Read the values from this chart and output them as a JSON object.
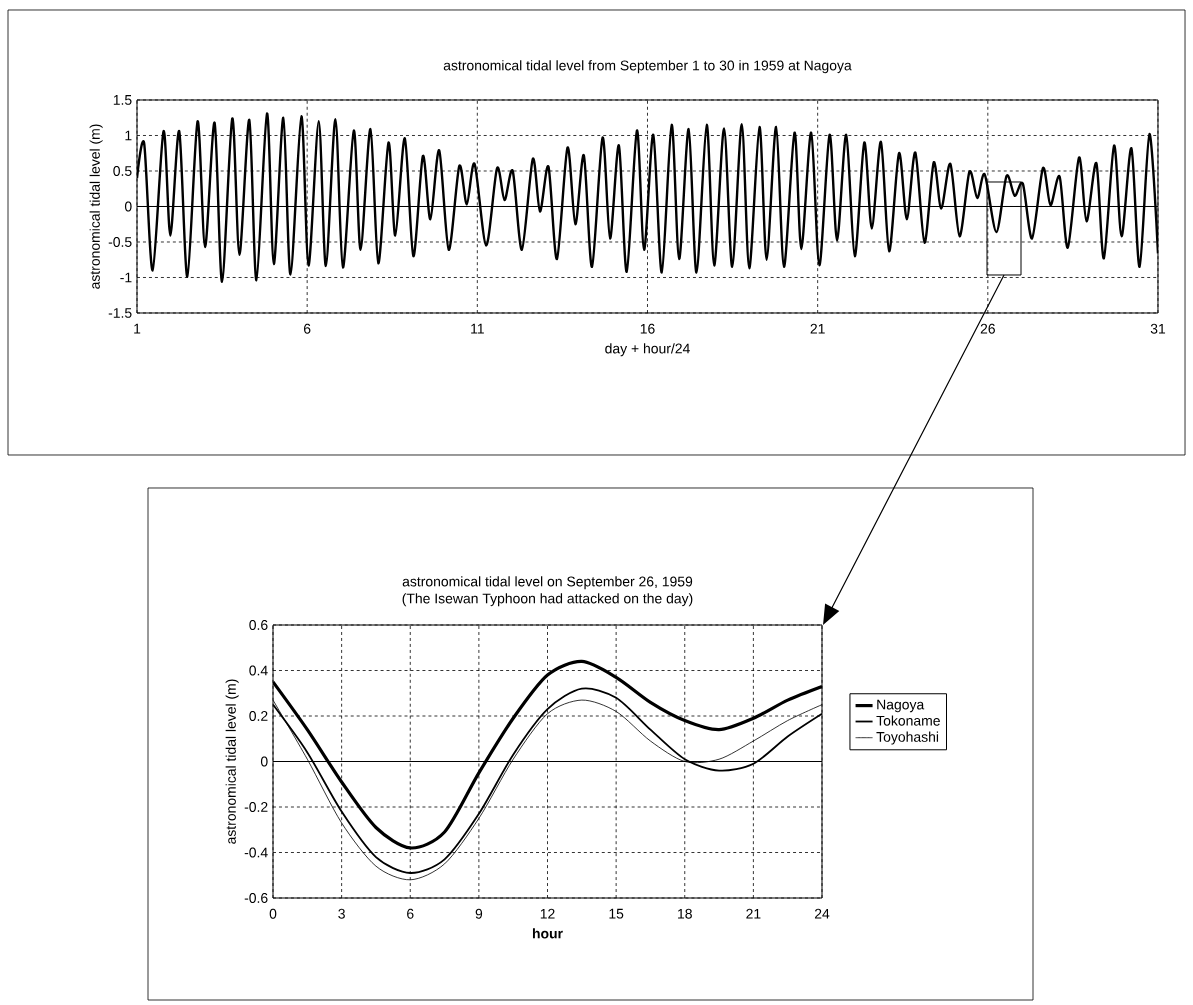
{
  "chart_data": [
    {
      "type": "line",
      "title": "astronomical tidal level from September 1 to 30 in 1959 at Nagoya",
      "xlabel": "day + hour/24",
      "ylabel": "astronomical tidal level (m)",
      "x": [
        1.0,
        1.21,
        1.46,
        1.78,
        1.98,
        2.24,
        2.48,
        2.78,
        3.0,
        3.28,
        3.5,
        3.8,
        4.01,
        4.3,
        4.51,
        4.82,
        5.02,
        5.3,
        5.51,
        5.83,
        6.04,
        6.34,
        6.55,
        6.83,
        7.05,
        7.37,
        7.57,
        7.86,
        8.09,
        8.39,
        8.59,
        8.87,
        9.12,
        9.4,
        9.62,
        9.88,
        10.16,
        10.47,
        10.69,
        10.92,
        11.26,
        11.58,
        11.8,
        12.04,
        12.31,
        12.63,
        12.84,
        13.09,
        13.34,
        13.65,
        13.88,
        14.13,
        14.37,
        14.68,
        14.9,
        15.16,
        15.39,
        15.69,
        15.9,
        16.17,
        16.42,
        16.71,
        16.93,
        17.21,
        17.44,
        17.74,
        17.96,
        18.25,
        18.49,
        18.77,
        18.99,
        19.29,
        19.5,
        19.78,
        20.01,
        20.32,
        20.52,
        20.81,
        21.05,
        21.35,
        21.57,
        21.84,
        22.09,
        22.37,
        22.59,
        22.86,
        23.1,
        23.39,
        23.62,
        23.87,
        24.14,
        24.41,
        24.63,
        24.9,
        25.17,
        25.46,
        25.69,
        25.91,
        26.25,
        26.55,
        26.79,
        27.03,
        27.3,
        27.62,
        27.84,
        28.11,
        28.35,
        28.68,
        28.9,
        29.19,
        29.41,
        29.71,
        29.93,
        30.22,
        30.46,
        30.75,
        31.0
      ],
      "series": [
        {
          "color": "#000000",
          "values": [
            0.4,
            0.89,
            -0.9,
            1.06,
            -0.41,
            1.06,
            -0.99,
            1.2,
            -0.57,
            1.18,
            -1.06,
            1.24,
            -0.68,
            1.22,
            -1.04,
            1.31,
            -0.81,
            1.25,
            -0.96,
            1.27,
            -0.83,
            1.2,
            -0.84,
            1.23,
            -0.86,
            1.07,
            -0.61,
            1.09,
            -0.8,
            0.9,
            -0.41,
            0.96,
            -0.7,
            0.71,
            -0.18,
            0.79,
            -0.61,
            0.57,
            0.03,
            0.6,
            -0.55,
            0.54,
            0.09,
            0.5,
            -0.61,
            0.67,
            -0.07,
            0.56,
            -0.74,
            0.83,
            -0.25,
            0.72,
            -0.85,
            0.97,
            -0.45,
            0.86,
            -0.92,
            1.07,
            -0.61,
            1.01,
            -0.93,
            1.15,
            -0.74,
            1.09,
            -0.93,
            1.15,
            -0.83,
            1.1,
            -0.85,
            1.16,
            -0.87,
            1.12,
            -0.75,
            1.12,
            -0.85,
            1.04,
            -0.6,
            1.04,
            -0.83,
            1.01,
            -0.48,
            1.01,
            -0.7,
            0.9,
            -0.31,
            0.91,
            -0.63,
            0.75,
            -0.18,
            0.76,
            -0.51,
            0.62,
            -0.03,
            0.6,
            -0.42,
            0.49,
            0.12,
            0.45,
            -0.36,
            0.43,
            0.15,
            0.32,
            -0.45,
            0.54,
            0.02,
            0.42,
            -0.58,
            0.69,
            -0.21,
            0.61,
            -0.73,
            0.86,
            -0.42,
            0.82,
            -0.85,
            1.02,
            -0.66
          ]
        }
      ],
      "xlim": [
        1,
        31
      ],
      "ylim": [
        -1.5,
        1.5
      ],
      "xticks": [
        1,
        6,
        11,
        16,
        21,
        26,
        31
      ],
      "yticks": [
        -1.5,
        -1,
        -0.5,
        0,
        0.5,
        1,
        1.5
      ],
      "grid": true,
      "ref_lines": [
        {
          "axis": "y",
          "value": 0,
          "line_style": "solid"
        }
      ]
    },
    {
      "type": "line",
      "title": "astronomical tidal level on September 26, 1959",
      "subtitle": "(The Isewan Typhoon had attacked on the day)",
      "xlabel": "hour",
      "ylabel": "astronomical tidal level (m)",
      "x": [
        0,
        1.5,
        3,
        4.5,
        6,
        7.5,
        9,
        10.5,
        12,
        13.5,
        15,
        16.5,
        18,
        19.5,
        21,
        22.5,
        24
      ],
      "series": [
        {
          "name": "Nagoya",
          "color": "#000000",
          "values": [
            0.35,
            0.14,
            -0.09,
            -0.29,
            -0.38,
            -0.31,
            -0.05,
            0.19,
            0.38,
            0.44,
            0.37,
            0.26,
            0.18,
            0.14,
            0.19,
            0.27,
            0.33
          ]
        },
        {
          "name": "Tokoname",
          "color": "#000000",
          "values": [
            0.25,
            0.04,
            -0.22,
            -0.42,
            -0.49,
            -0.43,
            -0.23,
            0.03,
            0.23,
            0.32,
            0.28,
            0.14,
            0.01,
            -0.04,
            -0.01,
            0.11,
            0.21
          ]
        },
        {
          "name": "Toyohashi",
          "color": "#000000",
          "values": [
            0.27,
            0.01,
            -0.27,
            -0.46,
            -0.52,
            -0.45,
            -0.25,
            0.01,
            0.21,
            0.27,
            0.22,
            0.09,
            0.0,
            0.01,
            0.09,
            0.18,
            0.25
          ]
        }
      ],
      "xlim": [
        0,
        24
      ],
      "ylim": [
        -0.6,
        0.6
      ],
      "xticks": [
        0,
        3,
        6,
        9,
        12,
        15,
        18,
        21,
        24
      ],
      "yticks": [
        -0.6,
        -0.4,
        -0.2,
        0,
        0.2,
        0.4,
        0.6
      ],
      "grid": true,
      "legend": "right",
      "ref_lines": [
        {
          "axis": "y",
          "value": 0,
          "line_style": "solid"
        }
      ]
    }
  ]
}
